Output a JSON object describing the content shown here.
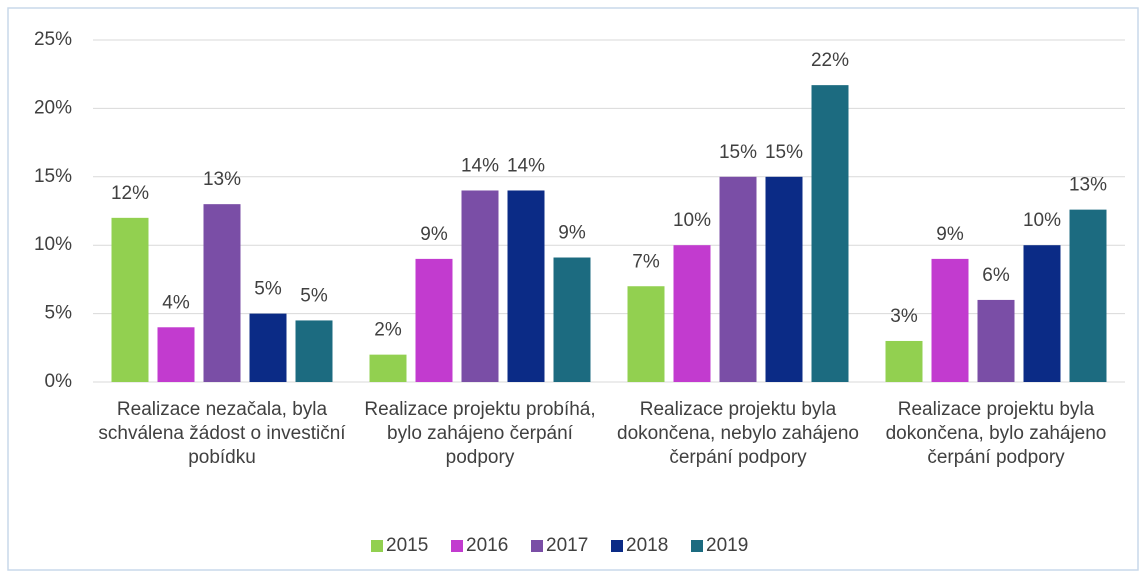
{
  "chart_data": {
    "type": "bar",
    "categories": [
      "Realizace nezačala, byla schválena žádost o investiční pobídku",
      "Realizace projektu probíhá, bylo zahájeno čerpání podpory",
      "Realizace projektu byla dokončena, nebylo zahájeno čerpání podpory",
      "Realizace projektu byla dokončena, bylo zahájeno čerpání podpory"
    ],
    "series": [
      {
        "name": "2015",
        "color": "#92d050",
        "values": [
          12,
          2,
          7,
          3
        ],
        "value_labels": [
          "12%",
          "2%",
          "7%",
          "3%"
        ]
      },
      {
        "name": "2016",
        "color": "#c23bcf",
        "values": [
          4,
          9,
          10,
          9
        ],
        "value_labels": [
          "4%",
          "9%",
          "10%",
          "9%"
        ]
      },
      {
        "name": "2017",
        "color": "#7a4ea6",
        "values": [
          13,
          14,
          15,
          6
        ],
        "value_labels": [
          "13%",
          "14%",
          "15%",
          "6%"
        ]
      },
      {
        "name": "2018",
        "color": "#0b2b86",
        "values": [
          5,
          14,
          15,
          10
        ],
        "value_labels": [
          "5%",
          "14%",
          "15%",
          "10%"
        ]
      },
      {
        "name": "2019",
        "color": "#1c6b80",
        "values": [
          4.5,
          9.1,
          21.7,
          12.6
        ],
        "value_labels": [
          "5%",
          "9%",
          "22%",
          "13%"
        ]
      }
    ],
    "ylim": [
      0,
      25
    ],
    "yticks": [
      {
        "value": 0,
        "label": "0%"
      },
      {
        "value": 5,
        "label": "5%"
      },
      {
        "value": 10,
        "label": "10%"
      },
      {
        "value": 15,
        "label": "15%"
      },
      {
        "value": 20,
        "label": "20%"
      },
      {
        "value": 25,
        "label": "25%"
      }
    ],
    "grid": true,
    "legend": "bottom"
  }
}
